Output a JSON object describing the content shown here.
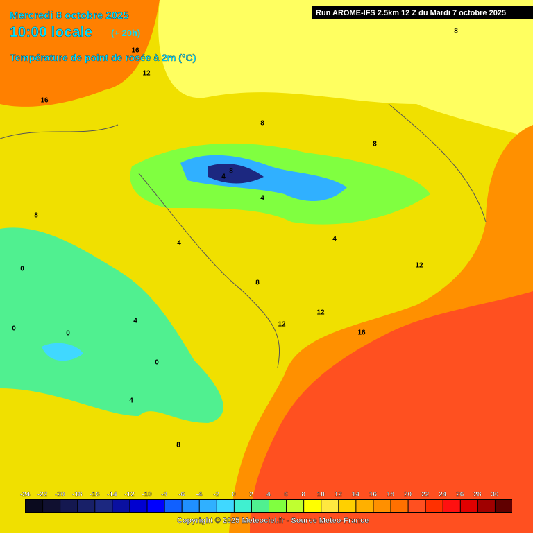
{
  "header": {
    "date": "Mercredi 8 octobre 2025",
    "time": "10:00 locale",
    "lead": "(+ 20h)",
    "run": "Run AROME-IFS 2.5km 12 Z du Mardi 7 octobre 2025",
    "parameter": "Température de point de rosée à 2m (°C)"
  },
  "map": {
    "contour_labels": [
      16,
      12,
      16,
      8,
      8,
      8,
      4,
      4,
      4,
      4,
      12,
      8,
      12,
      12,
      16,
      0,
      0,
      0,
      4,
      0,
      4,
      8,
      8,
      8
    ]
  },
  "legend": {
    "ticks": [
      -24,
      -22,
      -20,
      -18,
      -16,
      -14,
      -12,
      -10,
      -8,
      -6,
      -4,
      -2,
      0,
      2,
      4,
      6,
      8,
      10,
      12,
      14,
      16,
      18,
      20,
      22,
      24,
      26,
      28,
      30
    ],
    "colors": [
      "#0a0a1e",
      "#101030",
      "#141850",
      "#182068",
      "#1c2880",
      "#0a10a0",
      "#0000d0",
      "#0000ff",
      "#1060ff",
      "#2090ff",
      "#30b0ff",
      "#40d8ff",
      "#40f0d0",
      "#50f090",
      "#80ff40",
      "#c0ff30",
      "#ffff00",
      "#ffe840",
      "#ffd000",
      "#ffb000",
      "#ff9000",
      "#ff7000",
      "#ff5020",
      "#ff3000",
      "#ff1010",
      "#e00000",
      "#a00000",
      "#600000"
    ]
  },
  "footer": {
    "copyright": "Copyright © 2025 Meteociel.fr - Source Meteo-France"
  }
}
